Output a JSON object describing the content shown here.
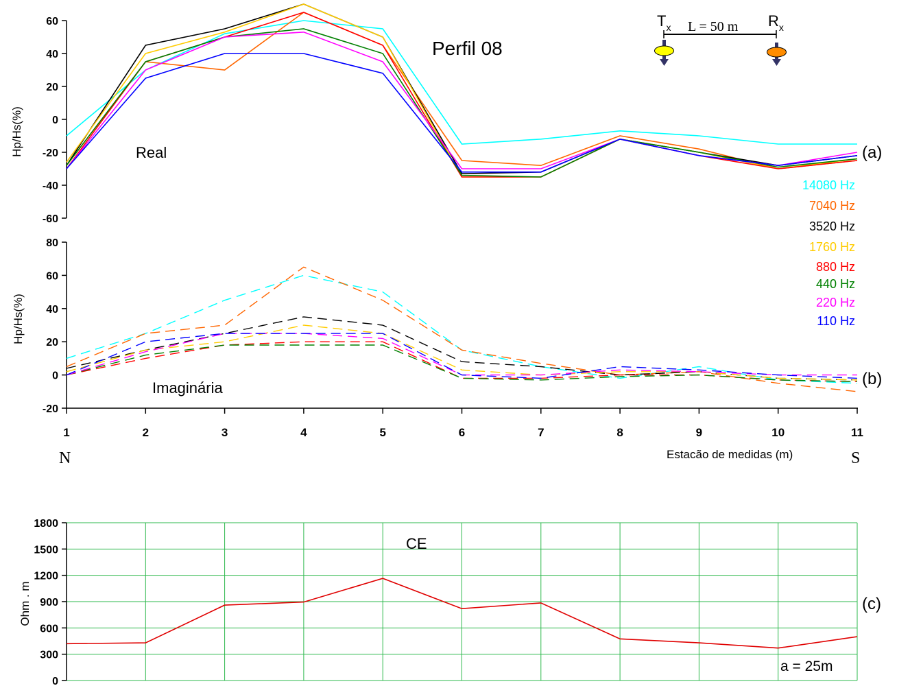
{
  "title": "Perfil 08",
  "schematic": {
    "tx_label": "T",
    "tx_sub": "x",
    "rx_label": "R",
    "rx_sub": "x",
    "spacing_label": "L = 50 m",
    "tx_color": "#ffff00",
    "rx_color": "#ff8c00"
  },
  "x_axis": {
    "ticks": [
      "1",
      "2",
      "3",
      "4",
      "5",
      "6",
      "7",
      "8",
      "9",
      "10",
      "11"
    ],
    "label": "Estacão de medidas (m)",
    "left_end": "N",
    "right_end": "S"
  },
  "legend": [
    {
      "label": "14080 Hz",
      "color": "#00ffff"
    },
    {
      "label": "7040 Hz",
      "color": "#ff6600"
    },
    {
      "label": "3520 Hz",
      "color": "#000000"
    },
    {
      "label": "1760 Hz",
      "color": "#ffcc00"
    },
    {
      "label": "880 Hz",
      "color": "#ff0000"
    },
    {
      "label": "440 Hz",
      "color": "#008000"
    },
    {
      "label": "220 Hz",
      "color": "#ff00ff"
    },
    {
      "label": "110 Hz",
      "color": "#0000ff"
    }
  ],
  "chart_data": [
    {
      "type": "line",
      "panel_label": "(a)",
      "annotation": "Real",
      "ylabel": "Hp/Hs(%)",
      "ylim": [
        -60,
        60
      ],
      "yticks": [
        "60",
        "40",
        "20",
        "0",
        "-20",
        "-40",
        "-60"
      ],
      "x": [
        1,
        2,
        3,
        4,
        5,
        6,
        7,
        8,
        9,
        10,
        11
      ],
      "line_style": "solid",
      "series": [
        {
          "name": "14080 Hz",
          "values": [
            -10,
            30,
            52,
            60,
            55,
            -15,
            -12,
            -7,
            -10,
            -15,
            -15
          ]
        },
        {
          "name": "7040 Hz",
          "values": [
            -28,
            35,
            30,
            65,
            45,
            -25,
            -28,
            -10,
            -18,
            -30,
            -25
          ]
        },
        {
          "name": "3520 Hz",
          "values": [
            -28,
            45,
            55,
            70,
            50,
            -33,
            -32,
            -12,
            -20,
            -28,
            -22
          ]
        },
        {
          "name": "1760 Hz",
          "values": [
            -26,
            40,
            53,
            70,
            50,
            -35,
            -35,
            -12,
            -20,
            -30,
            -24
          ]
        },
        {
          "name": "880 Hz",
          "values": [
            -30,
            35,
            50,
            65,
            45,
            -35,
            -35,
            -12,
            -22,
            -30,
            -25
          ]
        },
        {
          "name": "440 Hz",
          "values": [
            -28,
            35,
            50,
            55,
            40,
            -34,
            -35,
            -12,
            -20,
            -29,
            -24
          ]
        },
        {
          "name": "220 Hz",
          "values": [
            -30,
            30,
            50,
            53,
            35,
            -30,
            -30,
            -12,
            -22,
            -28,
            -20
          ]
        },
        {
          "name": "110 Hz",
          "values": [
            -30,
            25,
            40,
            40,
            28,
            -32,
            -32,
            -12,
            -22,
            -28,
            -22
          ]
        }
      ]
    },
    {
      "type": "line",
      "panel_label": "(b)",
      "annotation": "Imaginária",
      "ylabel": "Hp/Hs(%)",
      "ylim": [
        -20,
        80
      ],
      "yticks": [
        "80",
        "60",
        "40",
        "20",
        "0",
        "-20"
      ],
      "x": [
        1,
        2,
        3,
        4,
        5,
        6,
        7,
        8,
        9,
        10,
        11
      ],
      "line_style": "dashed",
      "series": [
        {
          "name": "14080 Hz",
          "values": [
            10,
            25,
            45,
            60,
            50,
            15,
            5,
            -2,
            5,
            -3,
            -5
          ]
        },
        {
          "name": "7040 Hz",
          "values": [
            5,
            25,
            30,
            65,
            45,
            15,
            7,
            0,
            2,
            -5,
            -10
          ]
        },
        {
          "name": "3520 Hz",
          "values": [
            4,
            15,
            25,
            35,
            30,
            8,
            5,
            0,
            2,
            -2,
            -3
          ]
        },
        {
          "name": "1760 Hz",
          "values": [
            2,
            15,
            20,
            30,
            25,
            3,
            0,
            2,
            2,
            -2,
            -3
          ]
        },
        {
          "name": "880 Hz",
          "values": [
            0,
            10,
            18,
            20,
            20,
            -2,
            -2,
            0,
            0,
            -3,
            -4
          ]
        },
        {
          "name": "440 Hz",
          "values": [
            0,
            12,
            18,
            18,
            18,
            -2,
            -3,
            -1,
            0,
            -3,
            -4
          ]
        },
        {
          "name": "220 Hz",
          "values": [
            0,
            14,
            25,
            25,
            22,
            0,
            0,
            3,
            2,
            0,
            0
          ]
        },
        {
          "name": "110 Hz",
          "values": [
            0,
            20,
            25,
            25,
            25,
            0,
            -2,
            5,
            3,
            0,
            -2
          ]
        }
      ]
    },
    {
      "type": "line",
      "panel_label": "(c)",
      "annotation": "CE",
      "note": "a = 25m",
      "ylabel": "Ohm . m",
      "ylim": [
        0,
        1800
      ],
      "yticks": [
        "1800",
        "1500",
        "1200",
        "900",
        "600",
        "300",
        "0"
      ],
      "x": [
        1,
        2,
        3,
        4,
        5,
        6,
        7,
        8,
        9,
        10,
        11
      ],
      "grid": true,
      "grid_color": "#2db84c",
      "series": [
        {
          "name": "",
          "color": "#e00000",
          "values": [
            420,
            430,
            860,
            895,
            1165,
            820,
            885,
            475,
            430,
            370,
            500
          ]
        }
      ]
    }
  ]
}
